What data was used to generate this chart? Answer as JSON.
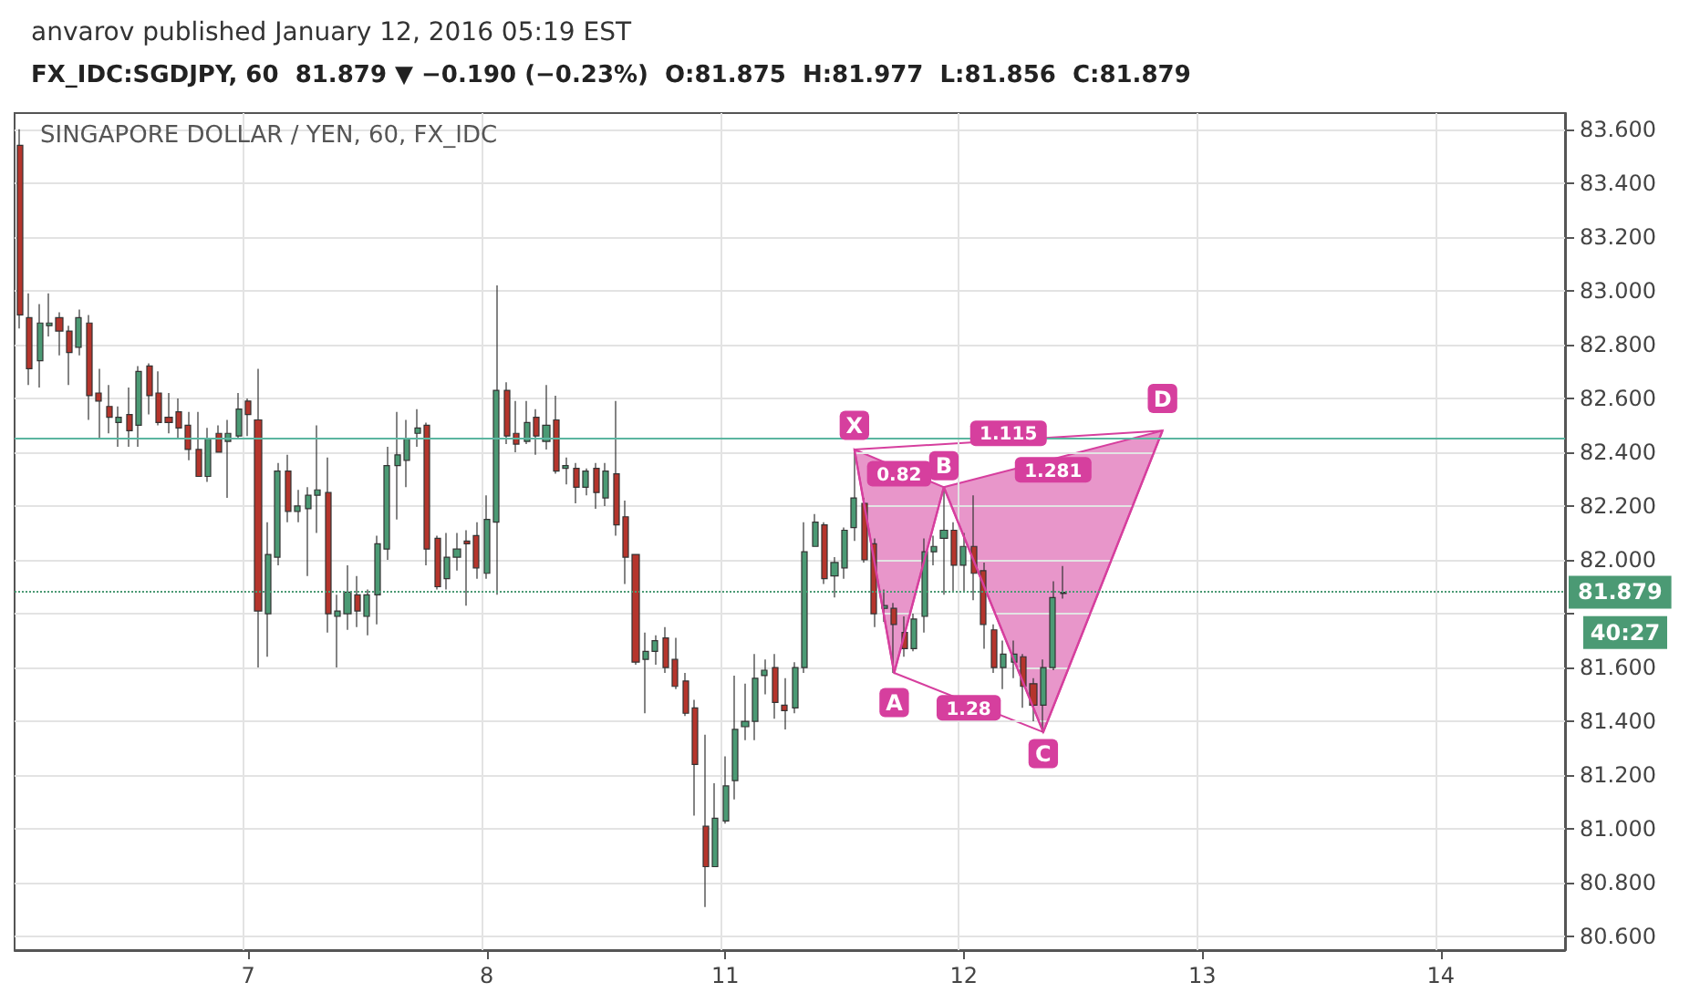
{
  "chart_data": {
    "type": "candlestick",
    "title": "anvarov published January 12, 2016 05:19 EST",
    "subtitle": "FX_IDC:SGDJPY, 60  81.879 ▼ −0.190 (−0.23%)  O:81.875  H:81.977  L:81.856  C:81.879",
    "annotations": [
      "SINGAPORE DOLLAR / YEN, 60, FX_IDC",
      "40:27",
      {
        "text": "X",
        "y": 82.5
      },
      {
        "text": "A",
        "y": 81.47
      },
      {
        "text": "B",
        "y": 82.35
      },
      {
        "text": "C",
        "y": 81.28
      },
      {
        "text": "D",
        "y": 82.6
      },
      {
        "text": "0.82",
        "y": 82.32
      },
      {
        "text": "1.28",
        "y": 81.45
      },
      {
        "text": "1.115",
        "y": 82.45
      },
      "1.281"
    ],
    "categories": [
      null,
      null,
      null,
      null,
      null,
      null,
      null,
      null,
      null,
      null,
      null,
      null,
      null,
      null,
      null,
      null,
      null,
      null,
      null,
      null,
      null,
      null,
      null,
      "7",
      null,
      null,
      null,
      null,
      null,
      null,
      null,
      null,
      null,
      null,
      null,
      null,
      null,
      null,
      null,
      null,
      null,
      null,
      null,
      null,
      null,
      null,
      null,
      "8",
      null,
      null,
      null,
      null,
      null,
      null,
      null,
      null,
      null,
      null,
      null,
      null,
      null,
      null,
      null,
      null,
      null,
      null,
      null,
      null,
      null,
      null,
      null,
      "11",
      null,
      null,
      null,
      null,
      null,
      null,
      null,
      null,
      null,
      null,
      null,
      null,
      null,
      null,
      null,
      null,
      null,
      null,
      null,
      null,
      null,
      null,
      null,
      "12",
      null,
      null,
      null,
      null,
      null,
      null,
      null,
      null,
      null,
      null,
      null,
      null,
      null,
      null,
      null,
      null,
      null,
      null,
      null,
      null,
      null,
      null,
      null,
      "13",
      null,
      null,
      null,
      null,
      null,
      null,
      null,
      null,
      null,
      null,
      null,
      null,
      null,
      null,
      null,
      null,
      null,
      null,
      null,
      null,
      null,
      null,
      null,
      "14",
      null,
      null,
      null,
      null,
      null,
      null,
      null,
      null,
      null,
      null,
      null,
      null
    ],
    "series": [
      {
        "ohlc": [
          [
            83.54,
            83.6,
            82.86,
            82.91
          ],
          [
            82.9,
            82.99,
            82.65,
            82.71
          ],
          [
            82.74,
            82.95,
            82.64,
            82.88
          ],
          [
            82.87,
            82.99,
            82.83,
            82.88
          ],
          [
            82.9,
            82.92,
            82.76,
            82.85
          ],
          [
            82.85,
            82.87,
            82.65,
            82.77
          ],
          [
            82.79,
            82.93,
            82.76,
            82.9
          ],
          [
            82.88,
            82.91,
            82.52,
            82.61
          ],
          [
            82.62,
            82.71,
            82.45,
            82.59
          ],
          [
            82.57,
            82.65,
            82.47,
            82.53
          ],
          [
            82.51,
            82.57,
            82.42,
            82.53
          ],
          [
            82.54,
            82.64,
            82.42,
            82.48
          ],
          [
            82.5,
            82.72,
            82.42,
            82.7
          ],
          [
            82.72,
            82.73,
            82.54,
            82.61
          ],
          [
            82.62,
            82.7,
            82.5,
            82.51
          ],
          [
            82.53,
            82.62,
            82.47,
            82.51
          ],
          [
            82.55,
            82.6,
            82.45,
            82.49
          ],
          [
            82.5,
            82.55,
            82.37,
            82.41
          ],
          [
            82.41,
            82.55,
            82.31,
            82.31
          ],
          [
            82.31,
            82.49,
            82.29,
            82.45
          ],
          [
            82.47,
            82.5,
            82.4,
            82.4
          ],
          [
            82.44,
            82.52,
            82.23,
            82.47
          ],
          [
            82.46,
            82.62,
            82.45,
            82.56
          ],
          [
            82.59,
            82.6,
            82.46,
            82.54
          ],
          [
            82.52,
            82.71,
            81.6,
            81.81
          ],
          [
            81.8,
            82.14,
            81.64,
            82.02
          ],
          [
            82.01,
            82.36,
            81.98,
            82.33
          ],
          [
            82.33,
            82.39,
            82.14,
            82.18
          ],
          [
            82.18,
            82.26,
            82.14,
            82.2
          ],
          [
            82.19,
            82.27,
            81.94,
            82.24
          ],
          [
            82.24,
            82.5,
            82.1,
            82.26
          ],
          [
            82.25,
            82.38,
            81.73,
            81.8
          ],
          [
            81.79,
            81.87,
            81.6,
            81.81
          ],
          [
            81.8,
            81.98,
            81.74,
            81.88
          ],
          [
            81.87,
            81.94,
            81.75,
            81.81
          ],
          [
            81.79,
            81.89,
            81.72,
            81.87
          ],
          [
            81.87,
            82.09,
            81.76,
            82.06
          ],
          [
            82.04,
            82.42,
            82.0,
            82.35
          ],
          [
            82.35,
            82.55,
            82.15,
            82.39
          ],
          [
            82.37,
            82.52,
            82.27,
            82.45
          ],
          [
            82.47,
            82.56,
            82.42,
            82.49
          ],
          [
            82.5,
            82.51,
            81.98,
            82.04
          ],
          [
            82.08,
            82.09,
            81.89,
            81.9
          ],
          [
            81.93,
            82.1,
            81.89,
            82.01
          ],
          [
            82.01,
            82.1,
            81.96,
            82.04
          ],
          [
            82.07,
            82.11,
            81.83,
            82.06
          ],
          [
            82.09,
            82.14,
            81.93,
            81.97
          ],
          [
            81.95,
            82.24,
            81.93,
            82.15
          ],
          [
            82.14,
            83.02,
            81.87,
            82.63
          ],
          [
            82.63,
            82.66,
            82.43,
            82.46
          ],
          [
            82.47,
            82.59,
            82.4,
            82.43
          ],
          [
            82.44,
            82.59,
            82.43,
            82.51
          ],
          [
            82.53,
            82.56,
            82.39,
            82.46
          ],
          [
            82.44,
            82.65,
            82.41,
            82.5
          ],
          [
            82.52,
            82.61,
            82.32,
            82.33
          ],
          [
            82.34,
            82.38,
            82.28,
            82.35
          ],
          [
            82.34,
            82.36,
            82.21,
            82.27
          ],
          [
            82.27,
            82.34,
            82.24,
            82.33
          ],
          [
            82.34,
            82.36,
            82.19,
            82.25
          ],
          [
            82.23,
            82.36,
            82.2,
            82.33
          ],
          [
            82.32,
            82.59,
            82.09,
            82.13
          ],
          [
            82.16,
            82.22,
            81.91,
            82.01
          ],
          [
            82.02,
            82.02,
            81.61,
            81.62
          ],
          [
            81.63,
            81.73,
            81.43,
            81.66
          ],
          [
            81.66,
            81.72,
            81.61,
            81.7
          ],
          [
            81.71,
            81.75,
            81.58,
            81.6
          ],
          [
            81.63,
            81.71,
            81.52,
            81.53
          ],
          [
            81.55,
            81.58,
            81.42,
            81.43
          ],
          [
            81.45,
            81.48,
            81.05,
            81.24
          ],
          [
            81.01,
            81.35,
            80.71,
            80.86
          ],
          [
            80.86,
            81.17,
            80.86,
            81.04
          ],
          [
            81.03,
            81.27,
            81.02,
            81.16
          ],
          [
            81.18,
            81.57,
            81.11,
            81.37
          ],
          [
            81.38,
            81.54,
            81.33,
            81.4
          ],
          [
            81.4,
            81.65,
            81.33,
            81.56
          ],
          [
            81.57,
            81.63,
            81.5,
            81.59
          ],
          [
            81.6,
            81.65,
            81.41,
            81.47
          ],
          [
            81.46,
            81.56,
            81.37,
            81.44
          ],
          [
            81.45,
            81.62,
            81.43,
            81.6
          ],
          [
            81.6,
            82.14,
            81.58,
            82.03
          ],
          [
            82.05,
            82.17,
            82.05,
            82.14
          ],
          [
            82.13,
            82.14,
            81.91,
            81.93
          ],
          [
            81.94,
            82.01,
            81.86,
            81.99
          ],
          [
            81.97,
            82.12,
            81.93,
            82.11
          ],
          [
            82.12,
            82.41,
            82.07,
            82.23
          ],
          [
            82.21,
            82.23,
            81.99,
            82.0
          ],
          [
            82.06,
            82.08,
            81.75,
            81.8
          ],
          [
            81.82,
            81.89,
            81.77,
            81.83
          ],
          [
            81.82,
            81.84,
            81.58,
            81.76
          ],
          [
            81.73,
            81.79,
            81.64,
            81.67
          ],
          [
            81.67,
            81.8,
            81.66,
            81.78
          ],
          [
            81.79,
            82.08,
            81.73,
            82.03
          ],
          [
            82.03,
            82.09,
            81.98,
            82.05
          ],
          [
            82.08,
            82.27,
            81.87,
            82.11
          ],
          [
            82.11,
            82.14,
            81.88,
            81.98
          ],
          [
            81.98,
            82.1,
            81.88,
            82.05
          ],
          [
            82.05,
            82.24,
            81.85,
            81.95
          ],
          [
            81.96,
            81.99,
            81.67,
            81.76
          ],
          [
            81.74,
            81.76,
            81.58,
            81.6
          ],
          [
            81.6,
            81.7,
            81.52,
            81.65
          ],
          [
            81.62,
            81.7,
            81.56,
            81.65
          ],
          [
            81.64,
            81.65,
            81.45,
            81.53
          ],
          [
            81.54,
            81.56,
            81.4,
            81.46
          ],
          [
            81.46,
            81.63,
            81.36,
            81.6
          ],
          [
            81.6,
            81.92,
            81.59,
            81.86
          ],
          [
            81.875,
            81.977,
            81.856,
            81.879
          ],
          null,
          null,
          null,
          null,
          null,
          null,
          null,
          null,
          null,
          null,
          null,
          null,
          null,
          null,
          null,
          null,
          null,
          null,
          null,
          null,
          null,
          null,
          null,
          null,
          null,
          null,
          null,
          null,
          null,
          null,
          null,
          null,
          null,
          null,
          null,
          null,
          null,
          null,
          null,
          null,
          null,
          null,
          null,
          null,
          null,
          null,
          null,
          null,
          null,
          null
        ],
        "colors": [
          "#b5352c",
          "#b5352c",
          "#4b9a74",
          "#4b9a74",
          "#b5352c",
          "#b5352c",
          "#4b9a74",
          "#b5352c",
          "#b5352c",
          "#b5352c",
          "#4b9a74",
          "#b5352c",
          "#4b9a74",
          "#b5352c",
          "#b5352c",
          "#b5352c",
          "#b5352c",
          "#b5352c",
          "#b5352c",
          "#4b9a74",
          "#b5352c",
          "#4b9a74",
          "#4b9a74",
          "#b5352c",
          "#b5352c",
          "#4b9a74",
          "#4b9a74",
          "#b5352c",
          "#4b9a74",
          "#4b9a74",
          "#4b9a74",
          "#b5352c",
          "#4b9a74",
          "#4b9a74",
          "#b5352c",
          "#4b9a74",
          "#4b9a74",
          "#4b9a74",
          "#4b9a74",
          "#4b9a74",
          "#4b9a74",
          "#b5352c",
          "#b5352c",
          "#4b9a74",
          "#4b9a74",
          "#b5352c",
          "#b5352c",
          "#4b9a74",
          "#4b9a74",
          "#b5352c",
          "#b5352c",
          "#4b9a74",
          "#b5352c",
          "#4b9a74",
          "#b5352c",
          "#4b9a74",
          "#b5352c",
          "#4b9a74",
          "#b5352c",
          "#4b9a74",
          "#b5352c",
          "#b5352c",
          "#b5352c",
          "#4b9a74",
          "#4b9a74",
          "#b5352c",
          "#b5352c",
          "#b5352c",
          "#b5352c",
          "#b5352c",
          "#4b9a74",
          "#4b9a74",
          "#4b9a74",
          "#4b9a74",
          "#4b9a74",
          "#4b9a74",
          "#b5352c",
          "#b5352c",
          "#4b9a74",
          "#4b9a74",
          "#4b9a74",
          "#b5352c",
          "#4b9a74",
          "#4b9a74",
          "#4b9a74",
          "#b5352c",
          "#b5352c",
          "#4b9a74",
          "#b5352c",
          "#b5352c",
          "#4b9a74",
          "#4b9a74",
          "#4b9a74",
          "#4b9a74",
          "#b5352c",
          "#4b9a74",
          "#b5352c",
          "#b5352c",
          "#b5352c",
          "#4b9a74",
          "#4b9a74",
          "#b5352c",
          "#b5352c",
          "#4b9a74",
          "#4b9a74",
          "#4b9a74",
          null,
          null,
          null,
          null,
          null,
          null,
          null,
          null,
          null,
          null,
          null,
          null,
          null,
          null,
          null,
          null,
          null,
          null,
          null,
          null,
          null,
          null,
          null,
          null,
          null,
          null,
          null,
          null,
          null,
          null,
          null,
          null,
          null,
          null,
          null,
          null,
          null,
          null,
          null,
          null,
          null,
          null,
          null,
          null,
          null,
          null,
          null,
          null,
          null,
          null
        ]
      },
      {
        "type": "line",
        "color": "#d63f9e",
        "values": [
          null,
          null,
          null,
          null,
          null,
          null,
          null,
          null,
          null,
          null,
          null,
          null,
          null,
          null,
          null,
          null,
          null,
          null,
          null,
          null,
          null,
          null,
          null,
          null,
          null,
          null,
          null,
          null,
          null,
          null,
          null,
          null,
          null,
          null,
          null,
          null,
          null,
          null,
          null,
          null,
          null,
          null,
          null,
          null,
          null,
          null,
          null,
          null,
          null,
          null,
          null,
          null,
          null,
          null,
          null,
          null,
          null,
          null,
          null,
          null,
          null,
          null,
          null,
          null,
          null,
          null,
          null,
          null,
          null,
          null,
          null,
          null,
          null,
          null,
          null,
          null,
          null,
          null,
          null,
          null,
          null,
          null,
          null,
          null,
          82.41,
          null,
          null,
          null,
          81.58,
          null,
          null,
          null,
          null,
          82.27,
          null,
          null,
          null,
          null,
          null,
          null,
          null,
          null,
          null,
          81.36,
          null,
          null,
          null,
          null,
          null,
          null,
          null,
          null,
          null,
          null,
          null,
          82.48,
          null,
          null,
          null,
          null,
          null,
          null,
          null,
          null,
          null,
          null,
          null,
          null,
          null,
          null,
          null,
          null,
          null,
          null,
          null,
          null,
          null,
          null,
          null,
          null,
          null,
          null,
          null,
          null,
          null,
          null,
          null,
          null,
          null,
          null,
          null,
          null,
          null,
          null,
          null,
          null
        ]
      }
    ],
    "ylim": [
      80.55,
      83.66
    ],
    "yticks": [
      {
        "value": 80.6,
        "label": "80.600"
      },
      {
        "value": 80.8,
        "label": "80.800"
      },
      {
        "value": 81,
        "label": "81.000"
      },
      {
        "value": 81.2,
        "label": "81.200"
      },
      {
        "value": 81.4,
        "label": "81.400"
      },
      {
        "value": 81.6,
        "label": "81.600"
      },
      {
        "value": 81.8,
        "label": null
      },
      {
        "value": 82,
        "label": "82.000"
      },
      {
        "value": 82.2,
        "label": "82.200"
      },
      {
        "value": 82.4,
        "label": "82.400"
      },
      {
        "value": 82.6,
        "label": "82.600"
      },
      {
        "value": 82.8,
        "label": "82.800"
      },
      {
        "value": 83,
        "label": "83.000"
      },
      {
        "value": 83.2,
        "label": "83.200"
      },
      {
        "value": 83.4,
        "label": "83.400"
      },
      {
        "value": 83.6,
        "label": "83.600"
      }
    ],
    "grid": true,
    "ref_lines": [
      {
        "axis": "y",
        "value": 82.45,
        "color": "#5bb5a0",
        "line_style": "solid"
      },
      {
        "axis": "y",
        "value": 81.879,
        "label": "81.879",
        "color": "#4b9a74",
        "line_style": "dotted"
      }
    ]
  }
}
